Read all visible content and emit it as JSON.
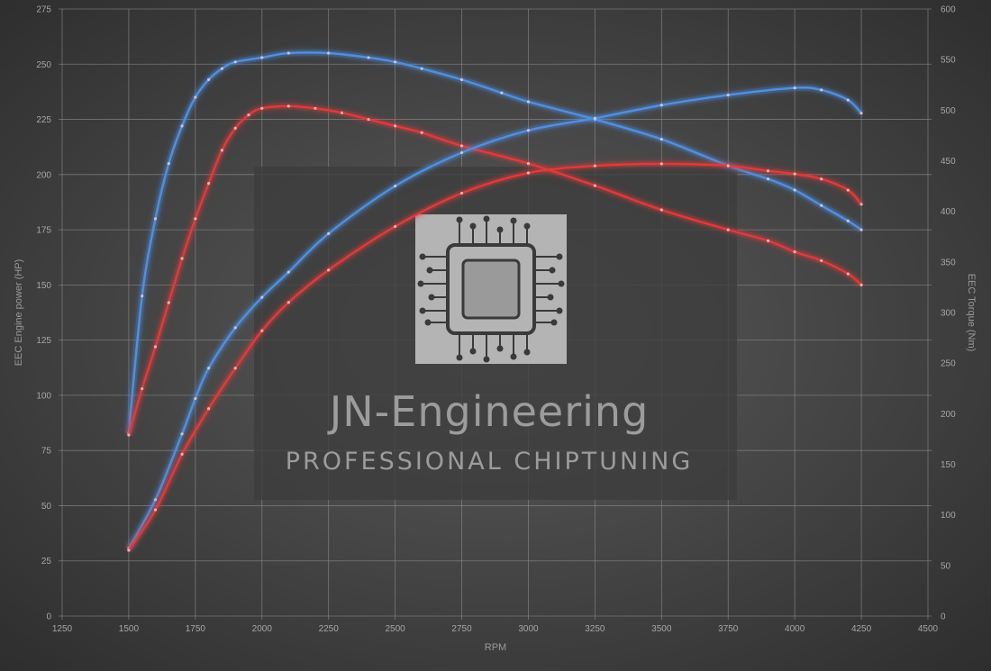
{
  "chart_data": {
    "type": "line",
    "xlabel": "RPM",
    "ylabel_left": "EEC Engine power (HP)",
    "ylabel_right": "EEC Torque (Nm)",
    "xlim": [
      1250,
      4500
    ],
    "x_ticks": [
      "1250",
      "1500",
      "1750",
      "2000",
      "2250",
      "2500",
      "2750",
      "3000",
      "3250",
      "3500",
      "3750",
      "4000",
      "4250",
      "4500"
    ],
    "ylim_left": [
      0,
      275
    ],
    "y_left_ticks": [
      "0",
      "25",
      "50",
      "75",
      "100",
      "125",
      "150",
      "175",
      "200",
      "225",
      "250",
      "275"
    ],
    "ylim_right": [
      0,
      600
    ],
    "y_right_ticks": [
      "0",
      "50",
      "100",
      "150",
      "200",
      "250",
      "300",
      "350",
      "400",
      "450",
      "500",
      "550",
      "600"
    ],
    "grid": true,
    "series": [
      {
        "axis": "left",
        "color": "#4f8fe0",
        "points": [
          [
            1500,
            83
          ],
          [
            1550,
            145
          ],
          [
            1600,
            180
          ],
          [
            1650,
            205
          ],
          [
            1700,
            222
          ],
          [
            1750,
            235
          ],
          [
            1800,
            243
          ],
          [
            1850,
            248
          ],
          [
            1900,
            251
          ],
          [
            2000,
            253
          ],
          [
            2100,
            255
          ],
          [
            2250,
            255
          ],
          [
            2400,
            253
          ],
          [
            2500,
            251
          ],
          [
            2600,
            248
          ],
          [
            2750,
            243
          ],
          [
            2900,
            237
          ],
          [
            3000,
            233
          ],
          [
            3250,
            225
          ],
          [
            3500,
            216
          ],
          [
            3750,
            204
          ],
          [
            3900,
            198
          ],
          [
            4000,
            193
          ],
          [
            4100,
            186
          ],
          [
            4200,
            179
          ],
          [
            4250,
            175
          ]
        ]
      },
      {
        "axis": "left",
        "color": "#e03a3a",
        "points": [
          [
            1500,
            82
          ],
          [
            1550,
            103
          ],
          [
            1600,
            122
          ],
          [
            1650,
            142
          ],
          [
            1700,
            162
          ],
          [
            1750,
            180
          ],
          [
            1800,
            196
          ],
          [
            1850,
            211
          ],
          [
            1900,
            221
          ],
          [
            1950,
            227
          ],
          [
            2000,
            230
          ],
          [
            2100,
            231
          ],
          [
            2200,
            230
          ],
          [
            2300,
            228
          ],
          [
            2400,
            225
          ],
          [
            2500,
            222
          ],
          [
            2600,
            219
          ],
          [
            2750,
            213
          ],
          [
            3000,
            205
          ],
          [
            3250,
            195
          ],
          [
            3500,
            184
          ],
          [
            3750,
            175
          ],
          [
            3900,
            170
          ],
          [
            4000,
            165
          ],
          [
            4100,
            161
          ],
          [
            4200,
            155
          ],
          [
            4250,
            150
          ]
        ]
      },
      {
        "axis": "right",
        "color": "#4f8fe0",
        "points": [
          [
            1500,
            67
          ],
          [
            1600,
            115
          ],
          [
            1700,
            180
          ],
          [
            1750,
            215
          ],
          [
            1800,
            245
          ],
          [
            1900,
            285
          ],
          [
            2000,
            315
          ],
          [
            2100,
            340
          ],
          [
            2250,
            378
          ],
          [
            2500,
            425
          ],
          [
            2750,
            458
          ],
          [
            3000,
            480
          ],
          [
            3250,
            492
          ],
          [
            3500,
            505
          ],
          [
            3750,
            515
          ],
          [
            4000,
            522
          ],
          [
            4100,
            520
          ],
          [
            4200,
            510
          ],
          [
            4250,
            497
          ]
        ]
      },
      {
        "axis": "right",
        "color": "#e03a3a",
        "points": [
          [
            1500,
            65
          ],
          [
            1600,
            105
          ],
          [
            1700,
            160
          ],
          [
            1800,
            205
          ],
          [
            1900,
            245
          ],
          [
            2000,
            282
          ],
          [
            2100,
            310
          ],
          [
            2250,
            342
          ],
          [
            2500,
            385
          ],
          [
            2750,
            418
          ],
          [
            3000,
            438
          ],
          [
            3250,
            445
          ],
          [
            3500,
            447
          ],
          [
            3750,
            445
          ],
          [
            3900,
            440
          ],
          [
            4000,
            437
          ],
          [
            4100,
            432
          ],
          [
            4200,
            421
          ],
          [
            4250,
            407
          ]
        ]
      }
    ]
  },
  "watermark": {
    "name": "JN-Engineering",
    "tagline": "PROFESSIONAL CHIPTUNING",
    "logo_icon": "chip-circuit-icon"
  }
}
